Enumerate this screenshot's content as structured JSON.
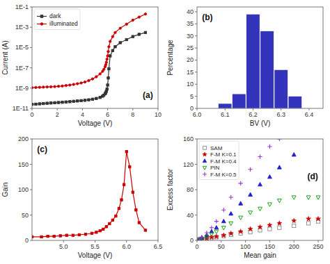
{
  "chart_data": [
    {
      "type": "line",
      "log": "y",
      "grid": false,
      "legend": "upper-left",
      "xlabel": "Voltage (V)",
      "ylabel": "Current (A)",
      "annotations": [
        "(a)"
      ],
      "xlim": [
        0,
        10
      ],
      "ylim": [
        1e-11,
        0.1
      ],
      "xticks": [
        0,
        2,
        4,
        6,
        8,
        10
      ],
      "yticks": [
        {
          "value": 1e-11,
          "label": "1E-11"
        },
        {
          "value": 1e-09,
          "label": "1E-9"
        },
        {
          "value": 1e-07,
          "label": "1E-7"
        },
        {
          "value": 1e-05,
          "label": "1E-5"
        },
        {
          "value": 0.001,
          "label": "1E-3"
        },
        {
          "value": 0.1,
          "label": "1E-1"
        }
      ],
      "x": [
        0,
        0.3,
        0.6,
        0.9,
        1.2,
        1.5,
        1.8,
        2.1,
        2.4,
        2.7,
        3.0,
        3.3,
        3.6,
        3.9,
        4.2,
        4.5,
        4.8,
        5.1,
        5.4,
        5.6,
        5.7,
        5.8,
        5.85,
        5.9,
        5.95,
        6.0,
        6.05,
        6.1,
        6.2,
        6.4,
        6.6,
        7.0,
        7.5,
        8.0,
        8.5,
        9.0
      ],
      "series": [
        {
          "name": "dark",
          "color": "#333333",
          "marker": "square",
          "values": [
            2.5e-11,
            2.6e-11,
            2.8e-11,
            3e-11,
            3.2e-11,
            3.4e-11,
            3.6e-11,
            3.8e-11,
            4e-11,
            4.3e-11,
            4.6e-11,
            5e-11,
            5.4e-11,
            5.8e-11,
            6.3e-11,
            7e-11,
            8e-11,
            9.5e-11,
            1.2e-10,
            1.6e-10,
            2e-10,
            2.8e-10,
            3.5e-10,
            5e-10,
            8e-10,
            2e-09,
            1e-08,
            8e-08,
            1.5e-06,
            5e-06,
            1.2e-05,
            3e-05,
            6e-05,
            0.00012,
            0.0002,
            0.0003
          ]
        },
        {
          "name": "illuminated",
          "color": "#cc0000",
          "marker": "circle",
          "values": [
            1.1e-09,
            1.15e-09,
            1.2e-09,
            1.25e-09,
            1.3e-09,
            1.35e-09,
            1.4e-09,
            1.5e-09,
            1.6e-09,
            1.8e-09,
            2e-09,
            2.3e-09,
            2.7e-09,
            3.2e-09,
            4e-09,
            5.5e-09,
            8e-09,
            1.3e-08,
            2.5e-08,
            4.5e-08,
            7e-08,
            1.3e-07,
            2e-07,
            3.5e-07,
            7e-07,
            1.5e-06,
            4e-06,
            1.2e-05,
            4e-05,
            0.00012,
            0.0003,
            0.0008,
            0.002,
            0.005,
            0.01,
            0.02
          ]
        }
      ]
    },
    {
      "type": "bar",
      "grid": false,
      "xlabel": "BV (V)",
      "ylabel": "Percentage",
      "annotations": [
        "(b)"
      ],
      "xlim": [
        6.0,
        6.45
      ],
      "ylim": [
        0,
        42
      ],
      "xticks": [
        {
          "value": 6.0,
          "label": "6.0"
        },
        6.1,
        6.2,
        6.3,
        6.4
      ],
      "yticks": [
        0,
        5,
        10,
        15,
        20,
        25,
        30,
        35,
        40
      ],
      "x": [
        6.1,
        6.15,
        6.2,
        6.25,
        6.3,
        6.35
      ],
      "values": [
        2,
        6,
        39,
        32,
        16,
        5
      ],
      "color": "#3333bb"
    },
    {
      "type": "line",
      "grid": false,
      "xlabel": "Voltage (V)",
      "ylabel": "Gain",
      "annotations": [
        "(c)"
      ],
      "xlim": [
        4.5,
        6.5
      ],
      "ylim": [
        0,
        200
      ],
      "xticks": [
        {
          "value": 5.0,
          "label": "5.0"
        },
        5.5,
        {
          "value": 6.0,
          "label": "6.0"
        },
        6.5
      ],
      "yticks": [
        0,
        50,
        100,
        150,
        200
      ],
      "x": [
        4.5,
        4.65,
        4.75,
        4.85,
        4.95,
        5.05,
        5.15,
        5.25,
        5.35,
        5.45,
        5.52,
        5.58,
        5.63,
        5.68,
        5.73,
        5.78,
        5.83,
        5.88,
        5.92,
        5.96,
        6.0,
        6.05,
        6.1,
        6.15,
        6.2,
        6.3
      ],
      "values": [
        7,
        7,
        8,
        8,
        9,
        10,
        10,
        11,
        12,
        14,
        16,
        19,
        22,
        27,
        33,
        40,
        48,
        63,
        80,
        110,
        175,
        145,
        95,
        60,
        35,
        20
      ],
      "color": "#cc0000",
      "marker": "square"
    },
    {
      "type": "scatter",
      "grid": false,
      "legend": "upper-left",
      "xlabel": "Mean gain",
      "ylabel": "Excess factor",
      "annotations": [
        "(d)"
      ],
      "xlim": [
        0,
        260
      ],
      "ylim": [
        0,
        160
      ],
      "xticks": [
        0,
        50,
        100,
        150,
        200,
        250
      ],
      "yticks": [
        0,
        40,
        80,
        120,
        160
      ],
      "series": [
        {
          "name": "SAM",
          "color": "#888888",
          "marker": "square-open",
          "x": [
            5,
            10,
            20,
            30,
            40,
            55,
            70,
            90,
            110,
            130,
            150,
            170,
            200,
            230,
            250
          ],
          "values": [
            1,
            2,
            3,
            4,
            5,
            7,
            9,
            11,
            13,
            16,
            18,
            20,
            23,
            27,
            30
          ]
        },
        {
          "name": "F-M K=0.1",
          "color": "#cc0000",
          "marker": "star",
          "x": [
            5,
            10,
            20,
            30,
            40,
            55,
            70,
            90,
            110,
            130,
            150,
            170,
            200,
            230,
            250
          ],
          "values": [
            1,
            2,
            3,
            5,
            6,
            8,
            11,
            14,
            18,
            21,
            24,
            27,
            31,
            34,
            34
          ]
        },
        {
          "name": "F-M K=0.4",
          "color": "#2222cc",
          "marker": "triangle-up",
          "x": [
            5,
            10,
            20,
            30,
            40,
            55,
            70,
            90,
            110,
            130,
            150,
            170,
            200
          ],
          "values": [
            2,
            4,
            8,
            14,
            20,
            30,
            42,
            58,
            72,
            88,
            100,
            115,
            135
          ]
        },
        {
          "name": "PIN",
          "color": "#009900",
          "marker": "triangle-down-open",
          "x": [
            5,
            10,
            20,
            30,
            40,
            55,
            70,
            90,
            110,
            130,
            150,
            170,
            200,
            230,
            250
          ],
          "values": [
            2,
            3,
            6,
            10,
            14,
            20,
            27,
            36,
            44,
            50,
            57,
            63,
            68,
            68,
            68
          ]
        },
        {
          "name": "F-M K=0.5",
          "color": "#9933cc",
          "marker": "plus",
          "x": [
            5,
            10,
            20,
            30,
            40,
            55,
            70,
            90,
            110,
            130,
            150,
            170
          ],
          "values": [
            2,
            5,
            12,
            20,
            30,
            48,
            68,
            90,
            112,
            132,
            148,
            160
          ]
        }
      ]
    }
  ]
}
